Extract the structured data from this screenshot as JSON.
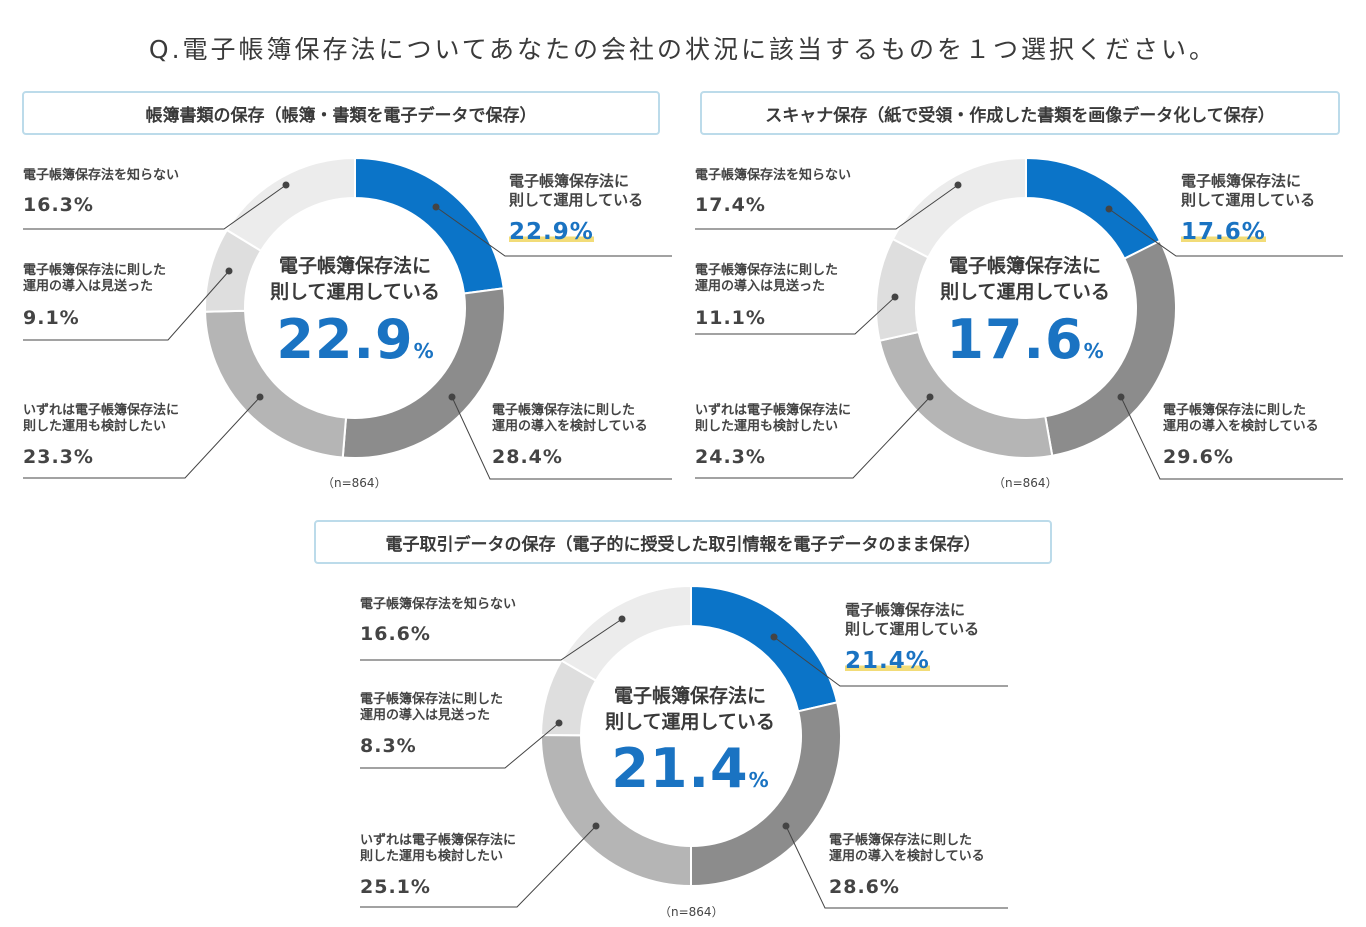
{
  "question": "Q.電子帳簿保存法についてあなたの会社の状況に該当するものを１つ選択ください。",
  "colors": {
    "s0": "#0b74c8",
    "s1": "#8c8c8c",
    "s2": "#b5b5b5",
    "s3": "#dedede",
    "s4": "#ececec",
    "accent": "#1a73c2",
    "highlight": "#f2dc78"
  },
  "chart_data": [
    {
      "type": "pie",
      "title": "帳簿書類の保存（帳簿・書類を電子データで保存）",
      "center_label": "電子帳簿保存法に則して運用している",
      "center_value": "22.9",
      "center_unit": "%",
      "n_label": "（n=864）",
      "slices": [
        {
          "label": "電子帳簿保存法に則して運用している",
          "value": 22.9,
          "text": "22.9%"
        },
        {
          "label": "電子帳簿保存法に則した運用の導入を検討している",
          "value": 28.4,
          "text": "28.4%"
        },
        {
          "label": "いずれは電子帳簿保存法に則した運用も検討したい",
          "value": 23.3,
          "text": "23.3%"
        },
        {
          "label": "電子帳簿保存法に則した運用の導入は見送った",
          "value": 9.1,
          "text": "9.1%"
        },
        {
          "label": "電子帳簿保存法を知らない",
          "value": 16.3,
          "text": "16.3%"
        }
      ]
    },
    {
      "type": "pie",
      "title": "スキャナ保存（紙で受領・作成した書類を画像データ化して保存）",
      "center_label": "電子帳簿保存法に則して運用している",
      "center_value": "17.6",
      "center_unit": "%",
      "n_label": "（n=864）",
      "slices": [
        {
          "label": "電子帳簿保存法に則して運用している",
          "value": 17.6,
          "text": "17.6%"
        },
        {
          "label": "電子帳簿保存法に則した運用の導入を検討している",
          "value": 29.6,
          "text": "29.6%"
        },
        {
          "label": "いずれは電子帳簿保存法に則した運用も検討したい",
          "value": 24.3,
          "text": "24.3%"
        },
        {
          "label": "電子帳簿保存法に則した運用の導入は見送った",
          "value": 11.1,
          "text": "11.1%"
        },
        {
          "label": "電子帳簿保存法を知らない",
          "value": 17.4,
          "text": "17.4%"
        }
      ]
    },
    {
      "type": "pie",
      "title": "電子取引データの保存（電子的に授受した取引情報を電子データのまま保存）",
      "center_label": "電子帳簿保存法に則して運用している",
      "center_value": "21.4",
      "center_unit": "%",
      "n_label": "（n=864）",
      "slices": [
        {
          "label": "電子帳簿保存法に則して運用している",
          "value": 21.4,
          "text": "21.4%"
        },
        {
          "label": "電子帳簿保存法に則した運用の導入を検討している",
          "value": 28.6,
          "text": "28.6%"
        },
        {
          "label": "いずれは電子帳簿保存法に則した運用も検討したい",
          "value": 25.1,
          "text": "25.1%"
        },
        {
          "label": "電子帳簿保存法に則した運用の導入は見送った",
          "value": 8.3,
          "text": "8.3%"
        },
        {
          "label": "電子帳簿保存法を知らない",
          "value": 16.6,
          "text": "16.6%"
        }
      ]
    }
  ],
  "label_lines": {
    "l0": [
      "電子帳簿保存法に",
      "則して運用している"
    ],
    "l1": [
      "電子帳簿保存法に則した",
      "運用の導入を検討している"
    ],
    "l2": [
      "いずれは電子帳簿保存法に",
      "則した運用も検討したい"
    ],
    "l3": [
      "電子帳簿保存法に則した",
      "運用の導入は見送った"
    ],
    "l4": [
      "電子帳簿保存法を知らない"
    ],
    "center": [
      "電子帳簿保存法に",
      "則して運用している"
    ]
  }
}
